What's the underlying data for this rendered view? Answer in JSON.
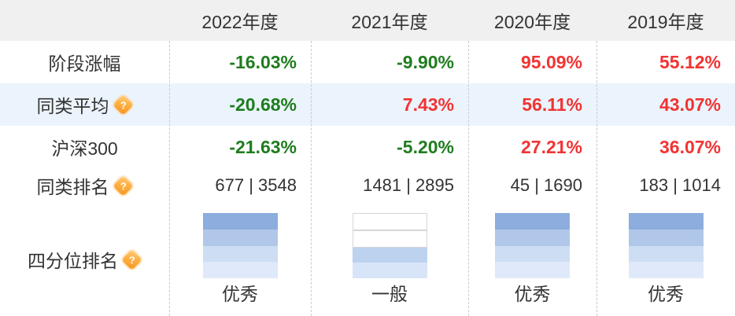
{
  "table": {
    "header_years": [
      "2022年度",
      "2021年度",
      "2020年度",
      "2019年度"
    ],
    "rows": [
      {
        "label": "阶段涨幅",
        "values": [
          {
            "text": "-16.03%",
            "tone": "green"
          },
          {
            "text": "-9.90%",
            "tone": "green"
          },
          {
            "text": "95.09%",
            "tone": "red"
          },
          {
            "text": "55.12%",
            "tone": "red"
          }
        ]
      },
      {
        "label": "同类平均",
        "values": [
          {
            "text": "-20.68%",
            "tone": "green"
          },
          {
            "text": "7.43%",
            "tone": "red"
          },
          {
            "text": "56.11%",
            "tone": "red"
          },
          {
            "text": "43.07%",
            "tone": "red"
          }
        ]
      },
      {
        "label": "沪深300",
        "values": [
          {
            "text": "-21.63%",
            "tone": "green"
          },
          {
            "text": "-5.20%",
            "tone": "green"
          },
          {
            "text": "27.21%",
            "tone": "red"
          },
          {
            "text": "36.07%",
            "tone": "red"
          }
        ]
      },
      {
        "label": "同类排名",
        "values": [
          {
            "text": "677 | 3548",
            "tone": "plain"
          },
          {
            "text": "1481 | 2895",
            "tone": "plain"
          },
          {
            "text": "45 | 1690",
            "tone": "plain"
          },
          {
            "text": "183 | 1014",
            "tone": "plain"
          }
        ]
      }
    ],
    "quartile_row": {
      "label": "四分位排名",
      "bars": [
        {
          "caption": "优秀",
          "segments": [
            "#8cadde",
            "#b0c7e9",
            "#cdddf3",
            "#dfe9f9"
          ]
        },
        {
          "caption": "一般",
          "segments": [
            null,
            null,
            "#bcd2ef",
            "#d8e5f8"
          ]
        },
        {
          "caption": "优秀",
          "segments": [
            "#8cadde",
            "#b0c7e9",
            "#cdddf3",
            "#dfe9f9"
          ]
        },
        {
          "caption": "优秀",
          "segments": [
            "#8cadde",
            "#b0c7e9",
            "#cdddf3",
            "#dfe9f9"
          ]
        }
      ]
    }
  },
  "icons": {
    "help_glyph": "?"
  },
  "colors": {
    "text": "#333333",
    "down_green": "#1e7d1e",
    "up_red": "#f23333",
    "header_bg": "#f0f0f0",
    "alt_row_bg": "#ebf4fc",
    "separator": "#c9c9c9",
    "empty_segment_border": "#d6d6d6",
    "help_icon_orange": "#f7941e"
  }
}
